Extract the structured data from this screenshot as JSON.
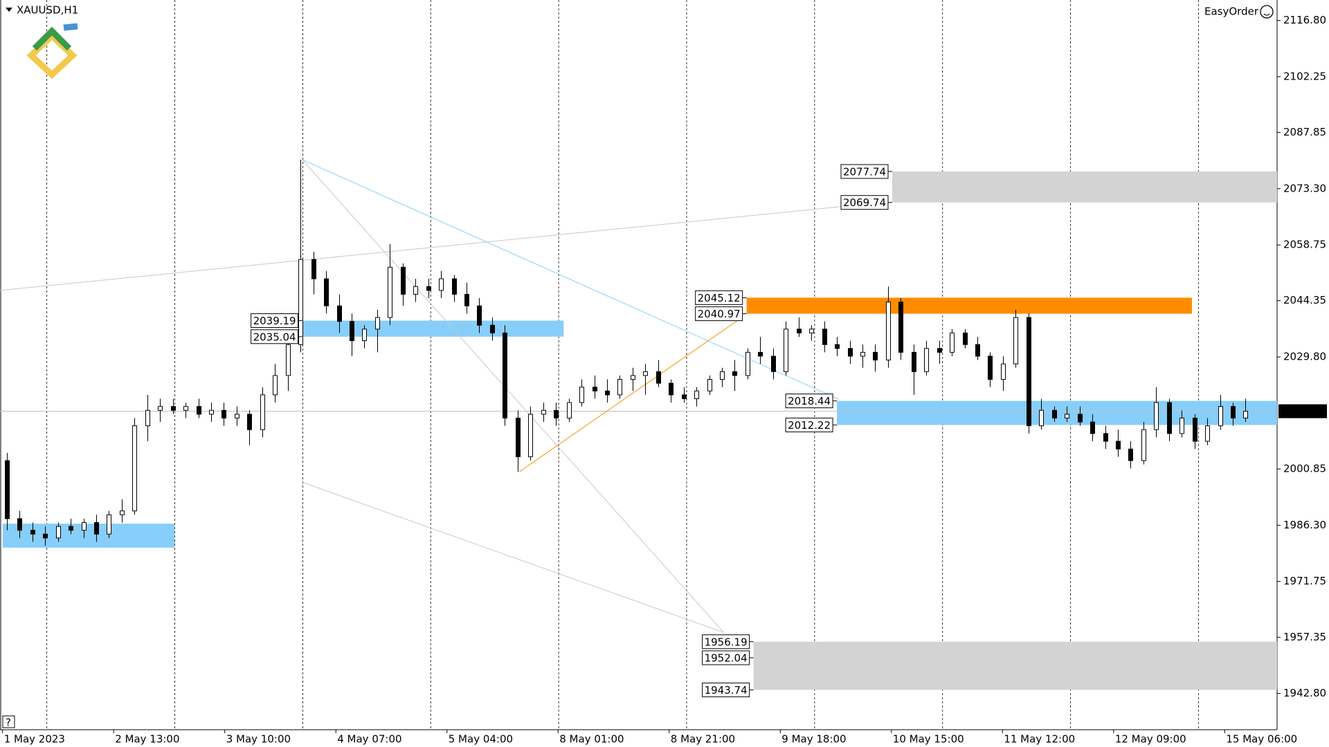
{
  "header": {
    "symbol": "XAUUSD,H1",
    "button": "EasyOrder",
    "help": "?"
  },
  "chart_data": {
    "type": "candlestick",
    "ylim": [
      1933.8,
      2122.07
    ],
    "yticks": [
      {
        "value": 2116.8,
        "label": "2116.80"
      },
      2102.25,
      2087.85,
      {
        "value": 2073.3,
        "label": "2073.30"
      },
      2058.75,
      2044.35,
      {
        "value": 2029.8,
        "label": "2029.80"
      },
      2000.85,
      {
        "value": 1986.3,
        "label": "1986.30"
      },
      1971.75,
      1957.35,
      {
        "value": 1942.8,
        "label": "1942.80"
      }
    ],
    "x_labels": [
      "1 May 2023",
      "2 May 13:00",
      "3 May 10:00",
      "4 May 07:00",
      "5 May 04:00",
      "8 May 01:00",
      "8 May 21:00",
      "9 May 18:00",
      "10 May 15:00",
      "11 May 12:00",
      "12 May 09:00",
      "15 May 06:00"
    ],
    "last_price": 2015.77,
    "up_color": "#ffffff",
    "down_color": "#000000",
    "ohlc": [
      [
        2003,
        2005,
        1985,
        1988
      ],
      [
        1988,
        1990,
        1983,
        1985
      ],
      [
        1985,
        1987,
        1982,
        1984
      ],
      [
        1984,
        1986,
        1981,
        1983
      ],
      [
        1983,
        1987,
        1982,
        1986
      ],
      [
        1986,
        1988,
        1984,
        1985
      ],
      [
        1985,
        1988,
        1983,
        1987
      ],
      [
        1987,
        1989,
        1982,
        1984
      ],
      [
        1984,
        1990,
        1983,
        1989
      ],
      [
        1989,
        1993,
        1987,
        1990
      ],
      [
        1990,
        2014,
        1989,
        2012
      ],
      [
        2012,
        2020,
        2008,
        2016
      ],
      [
        2016,
        2019,
        2013,
        2017
      ],
      [
        2017,
        2019,
        2015,
        2016
      ],
      [
        2016,
        2018,
        2014,
        2017
      ],
      [
        2017,
        2019,
        2014,
        2015
      ],
      [
        2015,
        2018,
        2013,
        2016
      ],
      [
        2016,
        2018,
        2012,
        2014
      ],
      [
        2014,
        2017,
        2012,
        2015
      ],
      [
        2015,
        2016,
        2007,
        2011
      ],
      [
        2011,
        2022,
        2009,
        2020
      ],
      [
        2020,
        2028,
        2018,
        2025
      ],
      [
        2025,
        2036,
        2021,
        2033
      ],
      [
        2033,
        2080.8,
        2031,
        2055
      ],
      [
        2055,
        2057,
        2046,
        2050
      ],
      [
        2050,
        2052,
        2041,
        2043
      ],
      [
        2043,
        2046,
        2036,
        2039
      ],
      [
        2039,
        2041,
        2030,
        2034
      ],
      [
        2034,
        2038,
        2032,
        2037
      ],
      [
        2037,
        2042,
        2031,
        2040
      ],
      [
        2040,
        2059,
        2038,
        2053
      ],
      [
        2053,
        2054,
        2043,
        2046
      ],
      [
        2046,
        2050,
        2044,
        2048
      ],
      [
        2048,
        2050,
        2045,
        2047
      ],
      [
        2047,
        2052,
        2045,
        2050
      ],
      [
        2050,
        2051,
        2044,
        2046
      ],
      [
        2046,
        2049,
        2041,
        2043
      ],
      [
        2043,
        2045,
        2036,
        2038
      ],
      [
        2038,
        2040,
        2034,
        2036
      ],
      [
        2036,
        2038,
        2012,
        2014
      ],
      [
        2014,
        2016,
        2000.1,
        2004
      ],
      [
        2004,
        2017,
        2003,
        2015
      ],
      [
        2015,
        2018,
        2013,
        2016
      ],
      [
        2016,
        2018,
        2012,
        2014
      ],
      [
        2014,
        2019,
        2013,
        2018
      ],
      [
        2018,
        2024,
        2017,
        2022
      ],
      [
        2022,
        2025,
        2019,
        2021
      ],
      [
        2021,
        2024,
        2018,
        2020
      ],
      [
        2020,
        2025,
        2019,
        2024
      ],
      [
        2024,
        2027,
        2021,
        2025
      ],
      [
        2025,
        2028,
        2020,
        2026
      ],
      [
        2026,
        2029,
        2022,
        2023
      ],
      [
        2023,
        2024,
        2018,
        2020
      ],
      [
        2020,
        2022,
        2018,
        2019
      ],
      [
        2019,
        2022,
        2017,
        2021
      ],
      [
        2021,
        2025,
        2020,
        2024
      ],
      [
        2024,
        2027,
        2022,
        2026
      ],
      [
        2026,
        2029,
        2021,
        2025
      ],
      [
        2025,
        2032,
        2024,
        2031
      ],
      [
        2031,
        2035,
        2028,
        2030
      ],
      [
        2030,
        2032,
        2024,
        2026
      ],
      [
        2026,
        2039,
        2025,
        2037
      ],
      [
        2037,
        2040,
        2035,
        2036
      ],
      [
        2036,
        2038,
        2034,
        2037
      ],
      [
        2037,
        2039,
        2031,
        2033
      ],
      [
        2033,
        2035,
        2030,
        2032
      ],
      [
        2032,
        2034,
        2028,
        2030
      ],
      [
        2030,
        2033,
        2027,
        2031
      ],
      [
        2031,
        2033,
        2026,
        2029
      ],
      [
        2029,
        2048,
        2027,
        2044
      ],
      [
        2044,
        2045,
        2029,
        2031
      ],
      [
        2031,
        2033,
        2020,
        2026
      ],
      [
        2026,
        2034,
        2025,
        2032
      ],
      [
        2032,
        2034,
        2028,
        2031
      ],
      [
        2031,
        2037,
        2030,
        2036
      ],
      [
        2036,
        2037,
        2032,
        2033
      ],
      [
        2033,
        2035,
        2029,
        2030
      ],
      [
        2030,
        2031,
        2022,
        2024
      ],
      [
        2024,
        2030,
        2021,
        2028
      ],
      [
        2028,
        2042,
        2027,
        2040
      ],
      [
        2040,
        2041,
        2010,
        2012
      ],
      [
        2012,
        2019,
        2011,
        2016
      ],
      [
        2016,
        2017,
        2013,
        2014
      ],
      [
        2014,
        2017,
        2013,
        2015
      ],
      [
        2015,
        2017,
        2012,
        2013
      ],
      [
        2013,
        2015,
        2008,
        2010
      ],
      [
        2010,
        2012,
        2006,
        2008
      ],
      [
        2008,
        2011,
        2004,
        2006
      ],
      [
        2006,
        2008,
        2001,
        2003
      ],
      [
        2003,
        2013,
        2002,
        2011
      ],
      [
        2011,
        2022,
        2009,
        2018
      ],
      [
        2018,
        2019,
        2008,
        2010
      ],
      [
        2010,
        2016,
        2009,
        2014
      ],
      [
        2014,
        2015,
        2006,
        2008
      ],
      [
        2008,
        2014,
        2007,
        2012
      ],
      [
        2012,
        2020,
        2011,
        2017
      ],
      [
        2017,
        2018,
        2012,
        2014
      ],
      [
        2014,
        2019,
        2013,
        2015.77
      ]
    ],
    "zones": [
      {
        "from": -0.33,
        "to": 13.13,
        "top": 1986.7,
        "bottom": 1980.5,
        "color": "#87cefa"
      },
      {
        "from": 23.13,
        "to": 43.6,
        "levels": [
          2039.19,
          2035.04
        ],
        "color": "#87cefa"
      },
      {
        "from": 69.33,
        "to": 99.47,
        "levels": [
          2077.74,
          2069.74
        ],
        "color": "#d3d3d3"
      },
      {
        "from": 57.93,
        "to": 92.8,
        "levels": [
          2045.12,
          2040.97
        ],
        "color": "#ff8c00"
      },
      {
        "from": 65,
        "to": 99.47,
        "levels": [
          2018.44,
          2012.22
        ],
        "color": "#87cefa"
      },
      {
        "from": 58.47,
        "to": 99.47,
        "levels": [
          1956.19,
          1952.04,
          1943.74
        ],
        "color": "#d3d3d3"
      }
    ],
    "lines": [
      {
        "x": [
          23.13,
          56.13
        ],
        "y": [
          2080.8,
          1958.6
        ],
        "color": "#c8c8c8"
      },
      {
        "x": [
          23.13,
          65.13
        ],
        "y": [
          2080.8,
          2018.9
        ],
        "color": "#87cefa"
      },
      {
        "x": [
          -0.53,
          68.8
        ],
        "y": [
          2047.0,
          2069.8
        ],
        "color": "#c8c8c8"
      },
      {
        "x": [
          40.13,
          57.47
        ],
        "y": [
          2000.1,
          2039.8
        ],
        "color": "#ff8c00"
      },
      {
        "x": [
          23.13,
          56.13
        ],
        "y": [
          1997.4,
          1958.6
        ],
        "color": "#c8c8c8"
      }
    ]
  }
}
